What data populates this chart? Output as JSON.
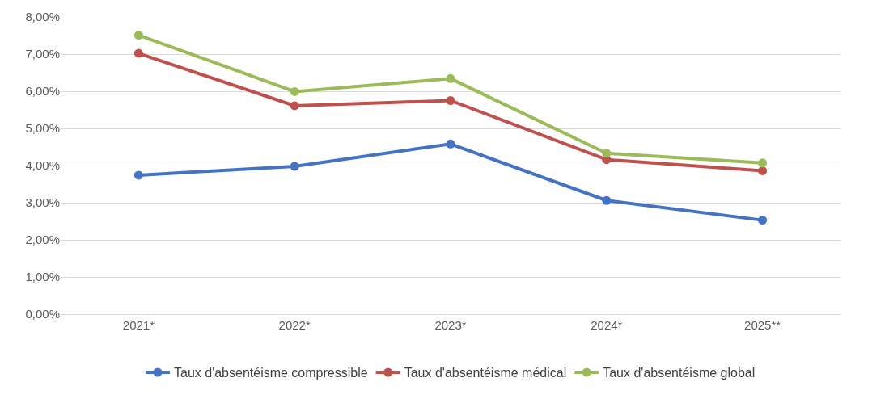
{
  "chart_data": {
    "type": "line",
    "categories": [
      "2021*",
      "2022*",
      "2023*",
      "2024*",
      "2025**"
    ],
    "series": [
      {
        "name": "Taux d'absentéisme compressible",
        "color": "#4472c4",
        "values": [
          3.74,
          3.98,
          4.58,
          3.06,
          2.53
        ]
      },
      {
        "name": "Taux d'absentéisme médical",
        "color": "#c0504d",
        "values": [
          7.02,
          5.61,
          5.75,
          4.16,
          3.86
        ]
      },
      {
        "name": "Taux d'absentéisme global",
        "color": "#9bbb59",
        "values": [
          7.51,
          5.99,
          6.34,
          4.33,
          4.07
        ]
      }
    ],
    "ylim": [
      0,
      8
    ],
    "yticks": [
      {
        "value": 0,
        "label": "0,00%"
      },
      {
        "value": 1,
        "label": "1,00%"
      },
      {
        "value": 2,
        "label": "2,00%"
      },
      {
        "value": 3,
        "label": "3,00%"
      },
      {
        "value": 4,
        "label": "4,00%"
      },
      {
        "value": 5,
        "label": "5,00%"
      },
      {
        "value": 6,
        "label": "6,00%"
      },
      {
        "value": 7,
        "label": "7,00%"
      },
      {
        "value": 8,
        "label": "8,00%"
      }
    ],
    "grid": "y",
    "legend": "bottom",
    "marker": "circle",
    "line_style": "solid"
  }
}
